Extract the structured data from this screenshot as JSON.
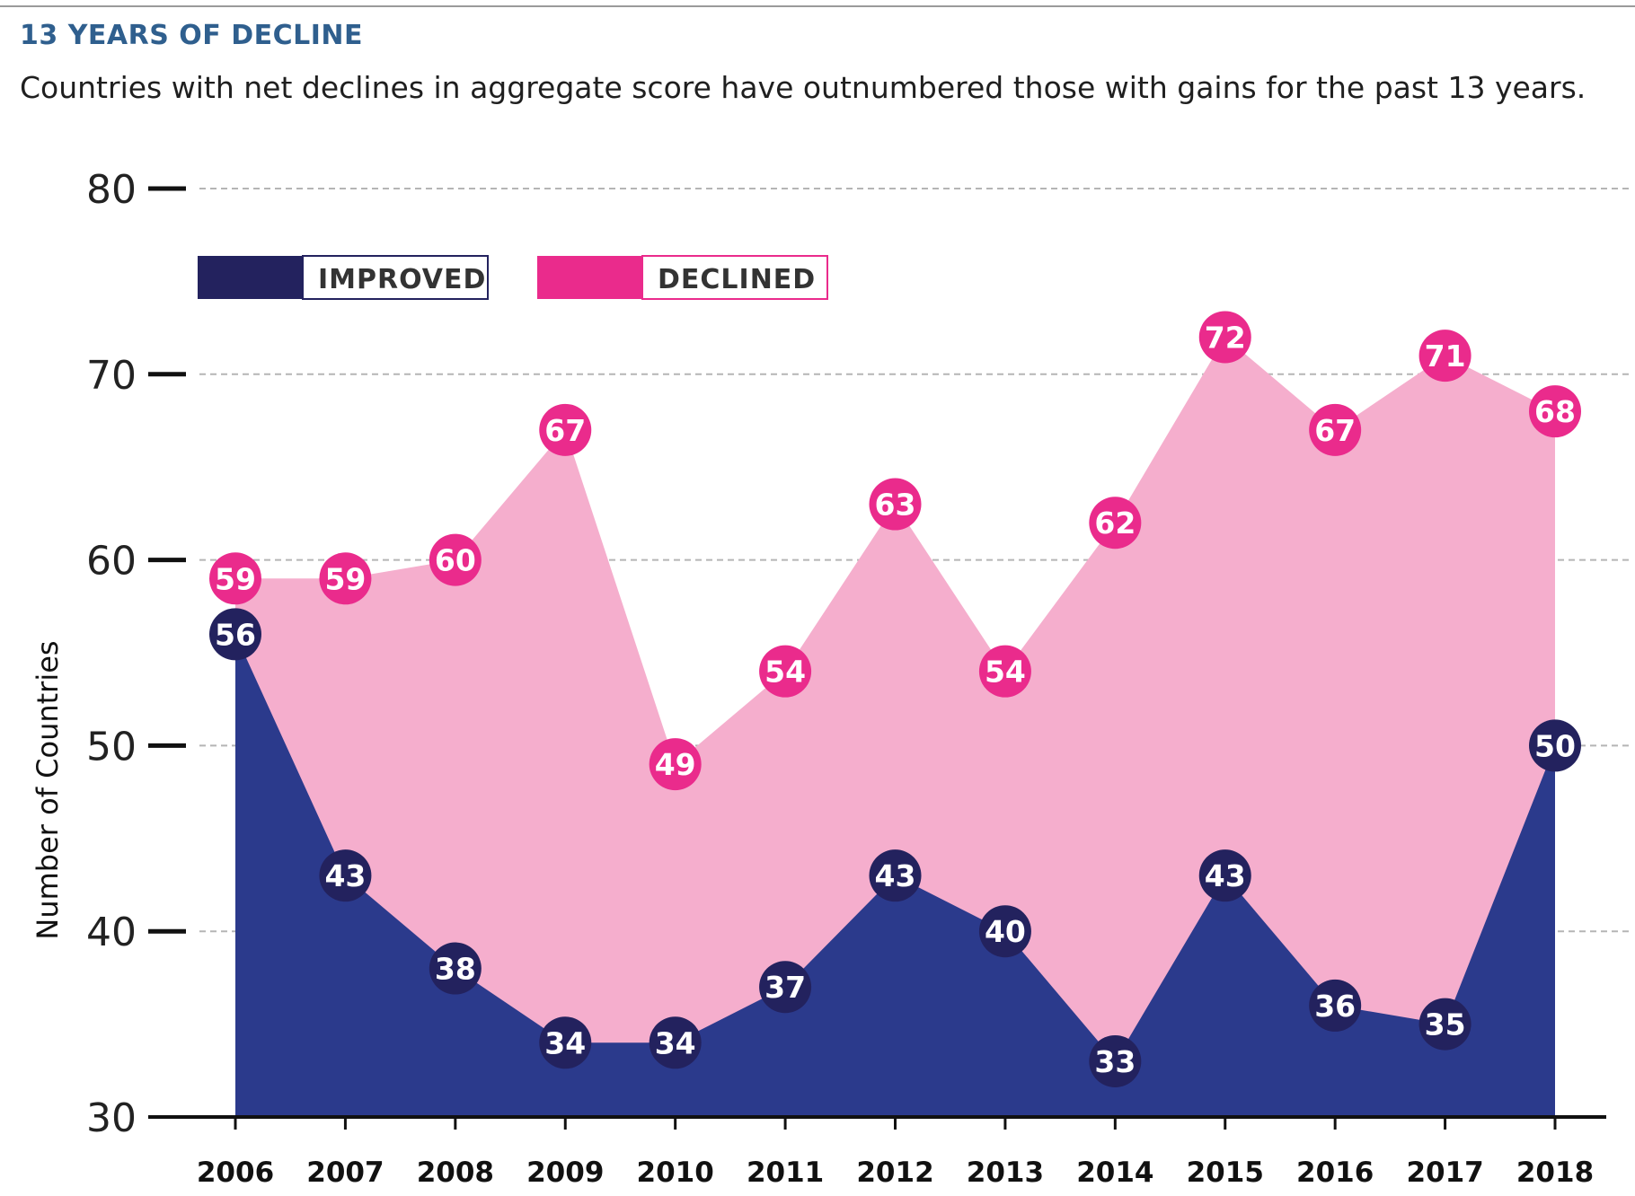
{
  "header": {
    "title": "13 YEARS OF DECLINE",
    "subtitle": "Countries with net declines in aggregate score have outnumbered those with gains for the past 13 years."
  },
  "colors": {
    "improved_fill": "#2b3a8c",
    "improved_marker": "#23225e",
    "declined_fill": "#f5aecd",
    "declined_marker": "#ea2b8c",
    "grid": "#b5b5b5",
    "axis": "#111111"
  },
  "chart_data": {
    "type": "area",
    "title": "13 YEARS OF DECLINE",
    "subtitle": "Countries with net declines in aggregate score have outnumbered those with gains for the past 13 years.",
    "xlabel": "",
    "ylabel": "Number of Countries",
    "x": [
      "2006",
      "2007",
      "2008",
      "2009",
      "2010",
      "2011",
      "2012",
      "2013",
      "2014",
      "2015",
      "2016",
      "2017",
      "2018"
    ],
    "ylim": [
      30,
      80
    ],
    "yticks": [
      30,
      40,
      50,
      60,
      70,
      80
    ],
    "grid": true,
    "legend": "top-left",
    "series": [
      {
        "name": "IMPROVED",
        "values": [
          56,
          43,
          38,
          34,
          34,
          37,
          43,
          40,
          33,
          43,
          36,
          35,
          50
        ]
      },
      {
        "name": "DECLINED",
        "values": [
          59,
          59,
          60,
          67,
          49,
          54,
          63,
          54,
          62,
          72,
          67,
          71,
          68
        ]
      }
    ]
  }
}
